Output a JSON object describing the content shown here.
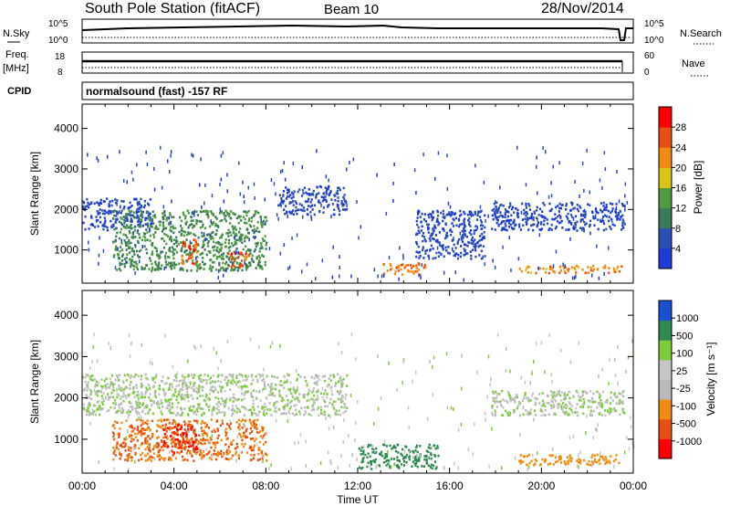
{
  "header": {
    "station": "South Pole Station (fitACF)",
    "beam": "Beam 10",
    "date": "28/Nov/2014"
  },
  "params": {
    "nsky_label": "N.Sky",
    "nsky_ticks": [
      "10^5",
      "10^0"
    ],
    "nsearch_label": "N.Search",
    "nsearch_ticks": [
      "10^5",
      "10^0"
    ],
    "freq_label": "Freq.",
    "freq_unit": "[MHz]",
    "freq_ticks": [
      "18",
      "8"
    ],
    "nave_label": "Nave",
    "nave_ticks": [
      "60",
      "0"
    ],
    "cpid_label": "CPID",
    "cpid_text": "normalsound (fast) -157 RF"
  },
  "x_axis": {
    "label": "Time UT",
    "ticks": [
      "00:00",
      "04:00",
      "08:00",
      "12:00",
      "16:00",
      "20:00",
      "00:00"
    ]
  },
  "colors": {
    "power": [
      "#1f3bd6",
      "#2b4fb5",
      "#3a7a5a",
      "#4f9a3e",
      "#d8c51a",
      "#f08c14",
      "#e85010",
      "#ff0000"
    ],
    "velocity": [
      "#ff0000",
      "#e85010",
      "#f08c14",
      "#b9b9b9",
      "#c6c6c6",
      "#7ccc3c",
      "#2e8b50",
      "#1a4fd0"
    ]
  },
  "chart_data": [
    {
      "type": "heatmap",
      "quantity": "Power",
      "ylabel": "Slant Range [km]",
      "xlabel": "Time UT",
      "y_ticks": [
        "1000",
        "2000",
        "3000",
        "4000"
      ],
      "ylim": [
        180,
        4600
      ],
      "xlim_hours": [
        0,
        24
      ],
      "colorbar_label": "Power [dB]",
      "colorbar_ticks": [
        "4",
        "8",
        "12",
        "16",
        "20",
        "24",
        "28"
      ],
      "regions": [
        {
          "t0": 0.0,
          "t1": 3.0,
          "r0": 1500,
          "r1": 2300,
          "value": 6
        },
        {
          "t0": 1.3,
          "t1": 8.0,
          "r0": 500,
          "r1": 2000,
          "value": 14
        },
        {
          "t0": 4.3,
          "t1": 5.0,
          "r0": 650,
          "r1": 1300,
          "value": 28
        },
        {
          "t0": 6.3,
          "t1": 7.3,
          "r0": 600,
          "r1": 1000,
          "value": 28
        },
        {
          "t0": 8.5,
          "t1": 11.5,
          "r0": 1900,
          "r1": 2600,
          "value": 6
        },
        {
          "t0": 13.0,
          "t1": 15.0,
          "r0": 400,
          "r1": 700,
          "value": 26
        },
        {
          "t0": 14.5,
          "t1": 17.5,
          "r0": 800,
          "r1": 2000,
          "value": 6
        },
        {
          "t0": 17.8,
          "t1": 23.6,
          "r0": 1500,
          "r1": 2200,
          "value": 6
        },
        {
          "t0": 19.0,
          "t1": 23.5,
          "r0": 450,
          "r1": 650,
          "value": 24
        }
      ]
    },
    {
      "type": "heatmap",
      "quantity": "Velocity",
      "ylabel": "Slant Range [km]",
      "xlabel": "Time UT",
      "y_ticks": [
        "1000",
        "2000",
        "3000",
        "4000"
      ],
      "ylim": [
        180,
        4600
      ],
      "xlim_hours": [
        0,
        24
      ],
      "colorbar_label": "Velocity [m s⁻¹]",
      "colorbar_ticks": [
        "1000",
        "500",
        "100",
        "25",
        "-25",
        "-100",
        "-500",
        "-1000"
      ],
      "regions": [
        {
          "t0": 0.0,
          "t1": 11.5,
          "r0": 1600,
          "r1": 2600,
          "value": 0
        },
        {
          "t0": 1.3,
          "t1": 8.0,
          "r0": 500,
          "r1": 1500,
          "value": -500
        },
        {
          "t0": 3.5,
          "t1": 5.0,
          "r0": 700,
          "r1": 1400,
          "value": -1000
        },
        {
          "t0": 12.0,
          "t1": 15.5,
          "r0": 300,
          "r1": 900,
          "value": 300
        },
        {
          "t0": 17.8,
          "t1": 23.6,
          "r0": 1600,
          "r1": 2200,
          "value": 0
        },
        {
          "t0": 19.0,
          "t1": 23.5,
          "r0": 400,
          "r1": 650,
          "value": -200
        }
      ]
    }
  ]
}
